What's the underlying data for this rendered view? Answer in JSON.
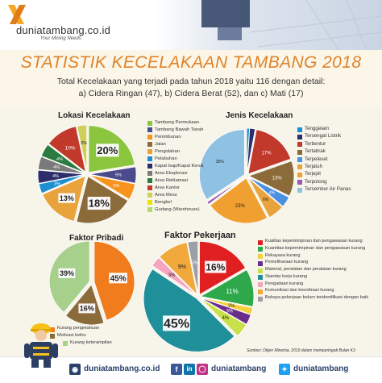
{
  "brand": {
    "name": "duniatambang.co.id",
    "tagline": "Your Mining Needs",
    "accent": "#e0832a"
  },
  "header": {
    "title": "STATISTIK KECELAKAAN TAMBANG 2018",
    "subtitle_line1": "Total Kecelakaan yang terjadi pada tahun 2018 yaitu 116 dengan detail:",
    "subtitle_line2": "a) Cidera Ringan (47), b) Cidera Berat (52), dan c)  Mati (17)"
  },
  "chart_data": [
    {
      "id": "lokasi",
      "type": "pie",
      "title": "Lokasi Kecelakaan",
      "categories": [
        "Tambang Permukaan",
        "Tambang Bawah Tanah",
        "Penimbunan",
        "Jalan",
        "Pengolahan",
        "Pelabuhan",
        "Kapal Isap/Kapal Keruk",
        "Area Eksplorasi",
        "Area Reklamasi",
        "Area Kantor",
        "Area Mess",
        "Bengkel",
        "Gudang (Warehouse)"
      ],
      "values": [
        20,
        5,
        5,
        18,
        13,
        3,
        4,
        4,
        4,
        10,
        3,
        0,
        0
      ],
      "data_labels": [
        "20%",
        "5%",
        "5%",
        "18%",
        "13%",
        "3%",
        "4%",
        "4%",
        "4%",
        "10%",
        "3%",
        "",
        ""
      ],
      "colors": [
        "#8cc63f",
        "#4a4a8c",
        "#f7941d",
        "#8b6b3a",
        "#e8a33c",
        "#1b8fd0",
        "#2d2d6b",
        "#7a7a7a",
        "#2b7a3f",
        "#c0392b",
        "#cfcf5a",
        "#e6e600",
        "#b5d96b"
      ],
      "legend_position": "right"
    },
    {
      "id": "jenis",
      "type": "pie",
      "title": "Jenis Kecelakaan",
      "categories": [
        "Tenggelam",
        "Tersengat Listrik",
        "Terbentur",
        "Tertabrak",
        "Terpeleset",
        "Terjatuh",
        "Terjepit",
        "Terpotong",
        "Tersembur Air Panas"
      ],
      "values": [
        1,
        2,
        17,
        13,
        4,
        6,
        23,
        1,
        35
      ],
      "data_labels": [
        "",
        "",
        "17%",
        "13%",
        "4%",
        "6%",
        "23%",
        "",
        "35%"
      ],
      "colors": [
        "#1b8fd0",
        "#2d2d6b",
        "#c0392b",
        "#8b6b3a",
        "#4a90e2",
        "#e8a33c",
        "#f0a030",
        "#9b59b6",
        "#8fc1e3"
      ],
      "legend_position": "right"
    },
    {
      "id": "pribadi",
      "type": "pie",
      "title": "Faktor Pribadi",
      "categories": [
        "Kurang pengetahuan",
        "Motivasi keliru",
        "Kurang keterampilan"
      ],
      "values": [
        45,
        16,
        39
      ],
      "data_labels": [
        "45%",
        "16%",
        "39%"
      ],
      "colors": [
        "#f07c1e",
        "#8b6b3a",
        "#a8d08d"
      ],
      "legend_position": "bottom"
    },
    {
      "id": "pekerjaan",
      "type": "pie",
      "title": "Faktor Pekerjaan",
      "categories": [
        "Kualitas kepemimpinan dan pengawasan kurang",
        "Kuantitas kepemimpinan dan pengawasan kurang",
        "Rekayasa kurang",
        "Pemeliharaan kurang",
        "Material, peralatan dan peralatan kurang",
        "Standar kerja kurang",
        "Pengadaan kurang",
        "Komunikasi dan koordinasi kurang",
        "Bahaya pekerjaan belum teridentifikasi dengan baik"
      ],
      "values": [
        16,
        11,
        2,
        3,
        4,
        45,
        3,
        9,
        3
      ],
      "data_labels": [
        "16%",
        "11%",
        "2%",
        "3%",
        "4%",
        "45%",
        "3%",
        "9%",
        "3%"
      ],
      "colors": [
        "#e02020",
        "#2ea84a",
        "#f4d03f",
        "#6b2d8a",
        "#c8e04a",
        "#1f8f9a",
        "#f6a5c0",
        "#f2a93b",
        "#9aa0a6"
      ],
      "legend_position": "right"
    }
  ],
  "source": "Sumber: Ditjen Minerba, 2019 dalam memperingati Bulan K3",
  "footer": {
    "website": "duniatambang.co.id",
    "social": "duniatambang",
    "twitter": "duniatambang"
  }
}
